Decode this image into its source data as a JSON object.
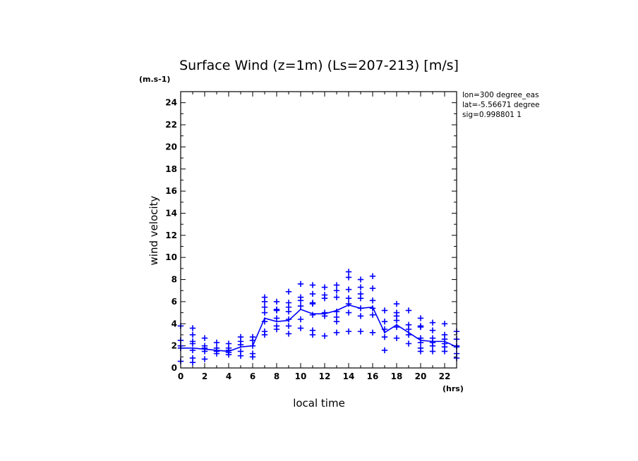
{
  "chart_data": {
    "type": "line",
    "title": "Surface Wind (z=1m) (Ls=207-213) [m/s]",
    "y_unit_label": "(m.s-1)",
    "x_unit_label": "(hrs)",
    "xlabel": "local time",
    "ylabel": "wind velocity",
    "info_lines": [
      "lon=300 degree_eas",
      "lat=-5.56671 degree",
      "sig=0.998801 1"
    ],
    "xlim": [
      0,
      23
    ],
    "ylim": [
      0,
      25
    ],
    "x_ticks": [
      0,
      2,
      4,
      6,
      8,
      10,
      12,
      14,
      16,
      18,
      20,
      22
    ],
    "y_ticks": [
      0,
      2,
      4,
      6,
      8,
      10,
      12,
      14,
      16,
      18,
      20,
      22,
      24
    ],
    "color": "#0000ff",
    "mean_series": {
      "name": "mean",
      "x": [
        0,
        1,
        2,
        3,
        4,
        5,
        6,
        7,
        8,
        9,
        10,
        11,
        12,
        13,
        14,
        15,
        16,
        17,
        18,
        19,
        20,
        21,
        22,
        23
      ],
      "y": [
        1.8,
        1.8,
        1.7,
        1.6,
        1.5,
        1.9,
        2.0,
        4.5,
        4.2,
        4.3,
        5.3,
        4.9,
        4.9,
        5.2,
        5.7,
        5.4,
        5.5,
        3.2,
        3.9,
        3.2,
        2.5,
        2.4,
        2.4,
        1.9
      ]
    },
    "scatter_series": {
      "name": "daily samples",
      "points": [
        [
          0,
          0.6
        ],
        [
          0,
          1.8
        ],
        [
          0,
          2.0
        ],
        [
          0,
          2.5
        ],
        [
          0,
          3.8
        ],
        [
          1,
          0.5
        ],
        [
          1,
          0.9
        ],
        [
          1,
          1.6
        ],
        [
          1,
          2.2
        ],
        [
          1,
          2.4
        ],
        [
          1,
          3.0
        ],
        [
          1,
          3.6
        ],
        [
          2,
          0.8
        ],
        [
          2,
          1.5
        ],
        [
          2,
          1.8
        ],
        [
          2,
          2.0
        ],
        [
          2,
          2.7
        ],
        [
          3,
          1.3
        ],
        [
          3,
          1.5
        ],
        [
          3,
          1.8
        ],
        [
          3,
          2.3
        ],
        [
          4,
          1.2
        ],
        [
          4,
          1.4
        ],
        [
          4,
          1.6
        ],
        [
          4,
          1.8
        ],
        [
          4,
          2.2
        ],
        [
          5,
          1.1
        ],
        [
          5,
          1.5
        ],
        [
          5,
          2.1
        ],
        [
          5,
          2.4
        ],
        [
          5,
          2.8
        ],
        [
          6,
          1.0
        ],
        [
          6,
          1.3
        ],
        [
          6,
          2.0
        ],
        [
          6,
          2.5
        ],
        [
          6,
          2.8
        ],
        [
          7,
          3.0
        ],
        [
          7,
          3.3
        ],
        [
          7,
          4.2
        ],
        [
          7,
          5.0
        ],
        [
          7,
          5.5
        ],
        [
          7,
          6.0
        ],
        [
          7,
          6.4
        ],
        [
          8,
          3.5
        ],
        [
          8,
          3.8
        ],
        [
          8,
          4.5
        ],
        [
          8,
          5.2
        ],
        [
          8,
          5.3
        ],
        [
          8,
          6.0
        ],
        [
          9,
          3.1
        ],
        [
          9,
          3.8
        ],
        [
          9,
          4.4
        ],
        [
          9,
          5.1
        ],
        [
          9,
          5.5
        ],
        [
          9,
          5.9
        ],
        [
          9,
          6.9
        ],
        [
          10,
          3.6
        ],
        [
          10,
          4.4
        ],
        [
          10,
          5.6
        ],
        [
          10,
          6.1
        ],
        [
          10,
          6.4
        ],
        [
          10,
          7.6
        ],
        [
          11,
          3.0
        ],
        [
          11,
          3.4
        ],
        [
          11,
          4.8
        ],
        [
          11,
          5.8
        ],
        [
          11,
          5.9
        ],
        [
          11,
          6.7
        ],
        [
          11,
          7.5
        ],
        [
          12,
          2.9
        ],
        [
          12,
          4.7
        ],
        [
          12,
          5.0
        ],
        [
          12,
          6.3
        ],
        [
          12,
          6.6
        ],
        [
          12,
          7.3
        ],
        [
          13,
          3.2
        ],
        [
          13,
          4.2
        ],
        [
          13,
          4.6
        ],
        [
          13,
          5.1
        ],
        [
          13,
          6.4
        ],
        [
          13,
          7.0
        ],
        [
          13,
          7.5
        ],
        [
          14,
          3.3
        ],
        [
          14,
          5.0
        ],
        [
          14,
          5.8
        ],
        [
          14,
          6.3
        ],
        [
          14,
          7.1
        ],
        [
          14,
          8.2
        ],
        [
          14,
          8.7
        ],
        [
          15,
          3.3
        ],
        [
          15,
          4.7
        ],
        [
          15,
          5.4
        ],
        [
          15,
          6.3
        ],
        [
          15,
          6.7
        ],
        [
          15,
          7.3
        ],
        [
          15,
          8.0
        ],
        [
          16,
          3.2
        ],
        [
          16,
          4.8
        ],
        [
          16,
          5.4
        ],
        [
          16,
          6.1
        ],
        [
          16,
          7.2
        ],
        [
          16,
          8.3
        ],
        [
          17,
          1.6
        ],
        [
          17,
          2.8
        ],
        [
          17,
          3.5
        ],
        [
          17,
          4.2
        ],
        [
          17,
          5.2
        ],
        [
          18,
          2.7
        ],
        [
          18,
          3.7
        ],
        [
          18,
          4.3
        ],
        [
          18,
          4.7
        ],
        [
          18,
          5.0
        ],
        [
          18,
          5.8
        ],
        [
          19,
          2.2
        ],
        [
          19,
          3.0
        ],
        [
          19,
          3.5
        ],
        [
          19,
          3.9
        ],
        [
          19,
          5.2
        ],
        [
          20,
          1.5
        ],
        [
          20,
          1.8
        ],
        [
          20,
          2.3
        ],
        [
          20,
          2.7
        ],
        [
          20,
          3.7
        ],
        [
          20,
          3.8
        ],
        [
          20,
          4.5
        ],
        [
          21,
          1.5
        ],
        [
          21,
          2.0
        ],
        [
          21,
          2.3
        ],
        [
          21,
          2.7
        ],
        [
          21,
          3.4
        ],
        [
          21,
          4.1
        ],
        [
          22,
          1.5
        ],
        [
          22,
          1.9
        ],
        [
          22,
          2.2
        ],
        [
          22,
          2.6
        ],
        [
          22,
          3.0
        ],
        [
          22,
          4.0
        ],
        [
          23,
          0.9
        ],
        [
          23,
          1.3
        ],
        [
          23,
          1.9
        ],
        [
          23,
          2.0
        ],
        [
          23,
          2.6
        ],
        [
          23,
          3.3
        ]
      ]
    }
  }
}
